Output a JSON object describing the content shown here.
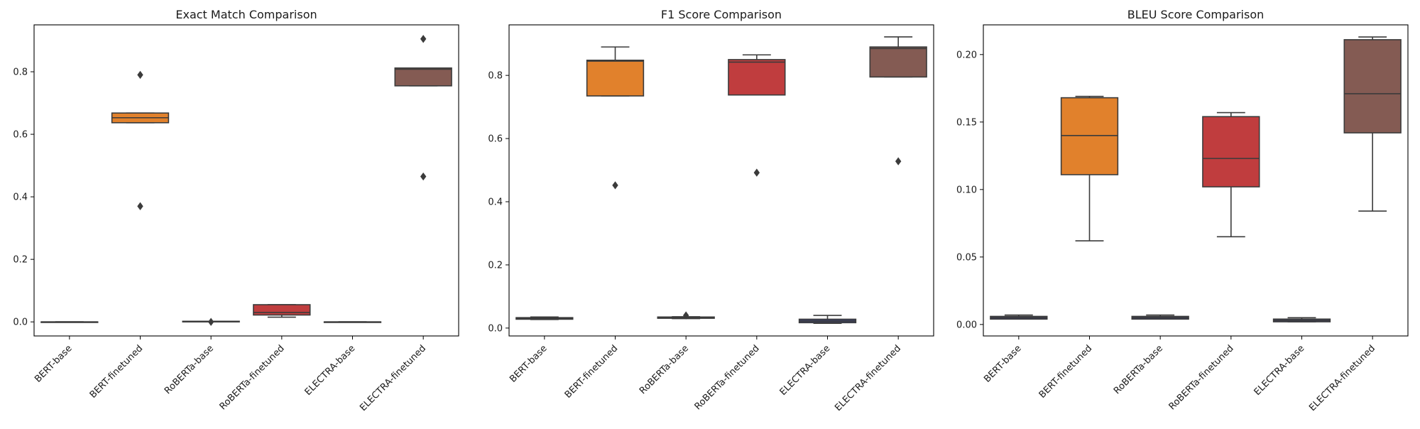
{
  "chart_data": [
    {
      "type": "box",
      "title": "Exact Match Comparison",
      "xlabel": "",
      "ylabel": "",
      "ylim": [
        -0.045,
        0.95
      ],
      "yticks": [
        0.0,
        0.2,
        0.4,
        0.6,
        0.8
      ],
      "ytick_labels": [
        "0.0",
        "0.2",
        "0.4",
        "0.6",
        "0.8"
      ],
      "grid": false,
      "categories": [
        "BERT-base",
        "BERT-finetuned",
        "RoBERTa-base",
        "RoBERTa-finetuned",
        "ELECTRA-base",
        "ELECTRA-finetuned"
      ],
      "boxes": [
        {
          "q1": 0.0,
          "median": 0.0,
          "q3": 0.0,
          "whisker_low": 0.0,
          "whisker_high": 0.0,
          "outliers": []
        },
        {
          "q1": 0.637,
          "median": 0.653,
          "q3": 0.668,
          "whisker_low": 0.637,
          "whisker_high": 0.668,
          "outliers": [
            0.37,
            0.79
          ]
        },
        {
          "q1": 0.0,
          "median": 0.001,
          "q3": 0.002,
          "whisker_low": 0.0,
          "whisker_high": 0.002,
          "outliers": [
            0.0
          ]
        },
        {
          "q1": 0.022,
          "median": 0.03,
          "q3": 0.055,
          "whisker_low": 0.015,
          "whisker_high": 0.055,
          "outliers": []
        },
        {
          "q1": 0.0,
          "median": 0.0,
          "q3": 0.0,
          "whisker_low": 0.0,
          "whisker_high": 0.0,
          "outliers": []
        },
        {
          "q1": 0.755,
          "median": 0.808,
          "q3": 0.812,
          "whisker_low": 0.755,
          "whisker_high": 0.812,
          "outliers": [
            0.465,
            0.905
          ]
        }
      ]
    },
    {
      "type": "box",
      "title": "F1 Score Comparison",
      "xlabel": "",
      "ylabel": "",
      "ylim": [
        -0.025,
        0.96
      ],
      "yticks": [
        0.0,
        0.2,
        0.4,
        0.6,
        0.8
      ],
      "ytick_labels": [
        "0.0",
        "0.2",
        "0.4",
        "0.6",
        "0.8"
      ],
      "grid": false,
      "categories": [
        "BERT-base",
        "BERT-finetuned",
        "RoBERTa-base",
        "RoBERTa-finetuned",
        "ELECTRA-base",
        "ELECTRA-finetuned"
      ],
      "boxes": [
        {
          "q1": 0.028,
          "median": 0.031,
          "q3": 0.033,
          "whisker_low": 0.027,
          "whisker_high": 0.035,
          "outliers": []
        },
        {
          "q1": 0.735,
          "median": 0.845,
          "q3": 0.848,
          "whisker_low": 0.735,
          "whisker_high": 0.89,
          "outliers": [
            0.452
          ]
        },
        {
          "q1": 0.031,
          "median": 0.033,
          "q3": 0.035,
          "whisker_low": 0.03,
          "whisker_high": 0.036,
          "outliers": [
            0.04
          ]
        },
        {
          "q1": 0.738,
          "median": 0.842,
          "q3": 0.85,
          "whisker_low": 0.738,
          "whisker_high": 0.865,
          "outliers": [
            0.492
          ]
        },
        {
          "q1": 0.017,
          "median": 0.022,
          "q3": 0.028,
          "whisker_low": 0.015,
          "whisker_high": 0.04,
          "outliers": []
        },
        {
          "q1": 0.795,
          "median": 0.885,
          "q3": 0.89,
          "whisker_low": 0.795,
          "whisker_high": 0.922,
          "outliers": [
            0.528
          ]
        }
      ]
    },
    {
      "type": "box",
      "title": "BLEU Score Comparison",
      "xlabel": "",
      "ylabel": "",
      "ylim": [
        -0.0085,
        0.222
      ],
      "yticks": [
        0.0,
        0.05,
        0.1,
        0.15,
        0.2
      ],
      "ytick_labels": [
        "0.00",
        "0.05",
        "0.10",
        "0.15",
        "0.20"
      ],
      "grid": false,
      "categories": [
        "BERT-base",
        "BERT-finetuned",
        "RoBERTa-base",
        "RoBERTa-finetuned",
        "ELECTRA-base",
        "ELECTRA-finetuned"
      ],
      "boxes": [
        {
          "q1": 0.004,
          "median": 0.005,
          "q3": 0.006,
          "whisker_low": 0.004,
          "whisker_high": 0.007,
          "outliers": []
        },
        {
          "q1": 0.111,
          "median": 0.14,
          "q3": 0.168,
          "whisker_low": 0.062,
          "whisker_high": 0.169,
          "outliers": []
        },
        {
          "q1": 0.004,
          "median": 0.005,
          "q3": 0.006,
          "whisker_low": 0.004,
          "whisker_high": 0.007,
          "outliers": []
        },
        {
          "q1": 0.102,
          "median": 0.123,
          "q3": 0.154,
          "whisker_low": 0.065,
          "whisker_high": 0.157,
          "outliers": []
        },
        {
          "q1": 0.002,
          "median": 0.003,
          "q3": 0.004,
          "whisker_low": 0.002,
          "whisker_high": 0.005,
          "outliers": []
        },
        {
          "q1": 0.142,
          "median": 0.171,
          "q3": 0.211,
          "whisker_low": 0.084,
          "whisker_high": 0.213,
          "outliers": []
        }
      ]
    }
  ],
  "colors": {
    "box_fills": [
      "#3a3f6e",
      "#e1812c",
      "#3a3f6e",
      "#c03d3e",
      "#3a3f6e",
      "#845b53"
    ],
    "box_edge": "#3b3b3b",
    "axes_edge": "#000000",
    "background": "#ffffff"
  }
}
